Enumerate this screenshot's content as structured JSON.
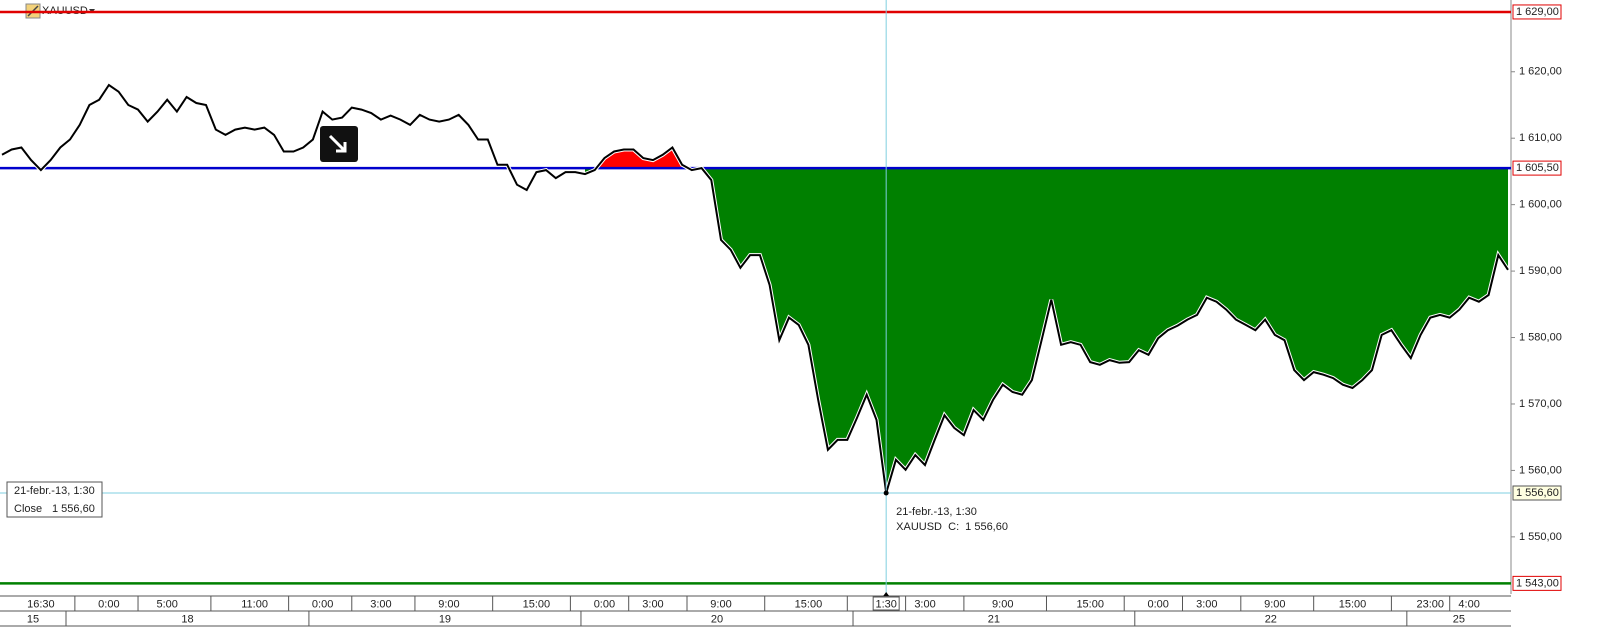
{
  "chart_data": {
    "type": "line",
    "symbol": "XAUUSD",
    "color": "#000000",
    "ylim": [
      1541.4,
      1630.8
    ],
    "yticks": [
      {
        "value": 1550,
        "label": "1 550,00"
      },
      {
        "value": 1560,
        "label": "1 560,00"
      },
      {
        "value": 1570,
        "label": "1 570,00"
      },
      {
        "value": 1580,
        "label": "1 580,00"
      },
      {
        "value": 1590,
        "label": "1 590,00"
      },
      {
        "value": 1600,
        "label": "1 600,00"
      },
      {
        "value": 1610,
        "label": "1 610,00"
      },
      {
        "value": 1620,
        "label": "1 620,00"
      }
    ],
    "levels": [
      {
        "value": 1629,
        "label": "1 629,00",
        "color": "#e00000"
      },
      {
        "value": 1605.5,
        "label": "1 605,50",
        "color": "#0000cc"
      },
      {
        "value": 1543,
        "label": "1 543,00",
        "color": "#008000"
      }
    ],
    "baseline_fill": {
      "start": 60,
      "above_color": "#ff0000",
      "below_color": "#008000"
    },
    "crosshair": {
      "value": 1556.6,
      "label": "1 556,60",
      "date": "21-febr.-13, 1:30",
      "close_text": "Close",
      "c_text": "C:"
    },
    "categories": [
      null,
      null,
      null,
      null,
      "16:30",
      null,
      null,
      null,
      null,
      null,
      null,
      "0:00",
      null,
      null,
      null,
      null,
      null,
      "5:00",
      null,
      null,
      null,
      null,
      null,
      null,
      null,
      null,
      "11:00",
      null,
      null,
      null,
      null,
      null,
      null,
      "0:00",
      null,
      null,
      null,
      null,
      null,
      "3:00",
      null,
      null,
      null,
      null,
      null,
      null,
      "9:00",
      null,
      null,
      null,
      null,
      null,
      null,
      null,
      null,
      "15:00",
      null,
      null,
      null,
      null,
      null,
      null,
      "0:00",
      null,
      null,
      null,
      null,
      "3:00",
      null,
      null,
      null,
      null,
      null,
      null,
      "9:00",
      null,
      null,
      null,
      null,
      null,
      null,
      null,
      null,
      "15:00",
      null,
      null,
      null,
      null,
      null,
      null,
      null,
      "1:30",
      null,
      null,
      null,
      "3:00",
      null,
      null,
      null,
      null,
      null,
      null,
      null,
      "9:00",
      null,
      null,
      null,
      null,
      null,
      null,
      null,
      null,
      "15:00",
      null,
      null,
      null,
      null,
      null,
      null,
      "0:00",
      null,
      null,
      null,
      null,
      "3:00",
      null,
      null,
      null,
      null,
      null,
      null,
      "9:00",
      null,
      null,
      null,
      null,
      null,
      null,
      null,
      "15:00",
      null,
      null,
      null,
      null,
      null,
      null,
      null,
      "23:00",
      null,
      null,
      null,
      "4:00",
      null,
      null,
      null,
      null
    ],
    "day_categories": [
      "15",
      null,
      null,
      null,
      null,
      null,
      null,
      "18",
      null,
      null,
      null,
      null,
      null,
      null,
      null,
      null,
      null,
      null,
      null,
      null,
      null,
      null,
      null,
      null,
      null,
      null,
      null,
      null,
      null,
      null,
      null,
      null,
      "19",
      null,
      null,
      null,
      null,
      null,
      null,
      null,
      null,
      null,
      null,
      null,
      null,
      null,
      null,
      null,
      null,
      null,
      null,
      null,
      null,
      null,
      null,
      null,
      null,
      null,
      null,
      null,
      "20",
      null,
      null,
      null,
      null,
      null,
      null,
      null,
      null,
      null,
      null,
      null,
      null,
      null,
      null,
      null,
      null,
      null,
      null,
      null,
      null,
      null,
      null,
      null,
      null,
      null,
      null,
      null,
      "21",
      null,
      null,
      null,
      null,
      null,
      null,
      null,
      null,
      null,
      null,
      null,
      null,
      null,
      null,
      null,
      null,
      null,
      null,
      null,
      null,
      null,
      null,
      null,
      null,
      null,
      null,
      null,
      null,
      "22",
      null,
      null,
      null,
      null,
      null,
      null,
      null,
      null,
      null,
      null,
      null,
      null,
      null,
      null,
      null,
      null,
      null,
      null,
      null,
      null,
      null,
      null,
      null,
      null,
      null,
      null,
      null,
      "25",
      null,
      null,
      null,
      null,
      null,
      null,
      null,
      null,
      null,
      null
    ],
    "values": [
      1607.5,
      1608.3,
      1608.6,
      1606.7,
      1605.2,
      1606.7,
      1608.6,
      1609.8,
      1612.0,
      1615.0,
      1615.8,
      1618.0,
      1617.0,
      1615.0,
      1614.3,
      1612.5,
      1614.0,
      1615.8,
      1614.0,
      1616.2,
      1615.3,
      1615.0,
      1611.3,
      1610.5,
      1611.3,
      1611.6,
      1611.3,
      1611.6,
      1610.5,
      1608.0,
      1608.0,
      1608.6,
      1609.8,
      1614.0,
      1612.8,
      1613.1,
      1614.6,
      1614.3,
      1613.8,
      1612.8,
      1613.4,
      1612.8,
      1612.0,
      1613.5,
      1612.8,
      1612.5,
      1612.8,
      1613.5,
      1612.0,
      1609.8,
      1609.8,
      1606.0,
      1606.0,
      1603.0,
      1602.2,
      1604.9,
      1605.2,
      1604.0,
      1604.9,
      1604.9,
      1604.6,
      1605.2,
      1607.0,
      1608.0,
      1608.3,
      1608.3,
      1607.0,
      1606.7,
      1607.5,
      1608.6,
      1606.0,
      1605.2,
      1605.5,
      1603.7,
      1594.7,
      1593.2,
      1590.5,
      1592.4,
      1592.4,
      1587.9,
      1579.6,
      1583.0,
      1581.9,
      1578.9,
      1570.6,
      1563.1,
      1564.6,
      1564.6,
      1567.9,
      1571.4,
      1567.6,
      1556.6,
      1561.6,
      1560.1,
      1562.3,
      1560.8,
      1564.6,
      1568.3,
      1566.4,
      1565.3,
      1569.1,
      1567.6,
      1570.6,
      1572.9,
      1571.8,
      1571.4,
      1573.6,
      1579.6,
      1585.7,
      1578.9,
      1579.3,
      1578.9,
      1576.3,
      1575.9,
      1576.6,
      1576.2,
      1576.3,
      1578.1,
      1577.4,
      1579.9,
      1581.1,
      1581.8,
      1582.7,
      1583.4,
      1586.0,
      1585.4,
      1584.2,
      1582.7,
      1581.9,
      1581.1,
      1582.7,
      1580.4,
      1579.6,
      1575.1,
      1573.6,
      1574.8,
      1574.4,
      1573.9,
      1572.9,
      1572.4,
      1573.6,
      1575.1,
      1580.4,
      1581.1,
      1578.9,
      1576.9,
      1580.4,
      1583.0,
      1583.4,
      1583.0,
      1584.2,
      1586.0,
      1585.4,
      1586.4,
      1592.4,
      1590.2
    ]
  }
}
